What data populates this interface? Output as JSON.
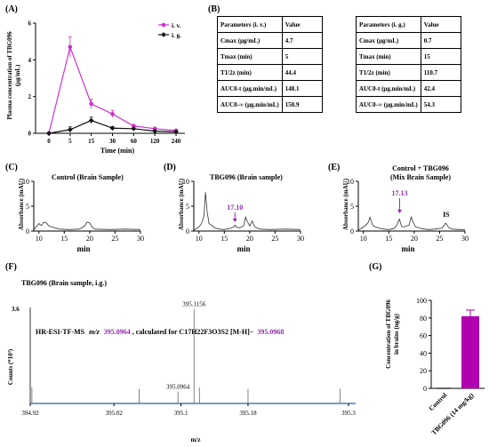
{
  "panels": {
    "A": {
      "letter": "(A)",
      "ylabel_line1": "Plasma concentration of TBG096",
      "ylabel_line2": "(μg/mL)",
      "xlabel": "Time (min)",
      "legend": [
        "i. v.",
        "i. g."
      ]
    },
    "B": {
      "letter": "(B)",
      "iv_table": {
        "header": [
          "Parameters (i. v.)",
          "Value"
        ],
        "rows": [
          [
            "Cmax (μg/mL)",
            "4.7"
          ],
          [
            "Tmax (min)",
            "5"
          ],
          [
            "T1/2z (min)",
            "44.4"
          ],
          [
            "AUC0-t (μg.min/mL)",
            "148.1"
          ],
          [
            "AUC0-∞ (μg.min/mL)",
            "150.9"
          ]
        ]
      },
      "ig_table": {
        "header": [
          "Parameters (i. g.)",
          "Value"
        ],
        "rows": [
          [
            "Cmax (μg/mL)",
            "0.7"
          ],
          [
            "Tmax (min)",
            "15"
          ],
          [
            "T1/2z (min)",
            "110.7"
          ],
          [
            "AUC0-t (μg.min/mL)",
            "42.4"
          ],
          [
            "AUC0-∞ (μg.min/mL)",
            "54.3"
          ]
        ]
      }
    },
    "C": {
      "letter": "(C)",
      "title": "Control (Brain Sample)",
      "ylabel": "Absorbance (mAU)",
      "xlabel": "min"
    },
    "D": {
      "letter": "(D)",
      "title": "TBG096 (Brain sample)",
      "peak_label": "17.10",
      "ylabel": "Absorbance (mAU)",
      "xlabel": "min"
    },
    "E": {
      "letter": "(E)",
      "title_line1": "Control + TBG096",
      "title_line2": "(Mix Brain Sample)",
      "peak_label": "17.13",
      "is_label": "IS",
      "ylabel": "Absorbance (mAU)",
      "xlabel": "min"
    },
    "F": {
      "letter": "(F)",
      "title": "TBG096 (Brain sample, i.g.)",
      "formula_prefix": "HR-ESI-TF-MS",
      "formula_mz": "m/z",
      "formula_obs": "395.0964",
      "formula_mid": ", calculated for C17H22F3O3S2 [M-H]−",
      "formula_calc": "395.0968",
      "ylabel": "Counts (*10³)",
      "xlabel": "m/z",
      "y_top_label": "3.6",
      "peak_top_label": "395.1156",
      "peak_obs_label": "395.0964"
    },
    "G": {
      "letter": "(G)",
      "ylabel_line1": "Concentration of TBG096",
      "ylabel_line2": "in brains (ng/g)"
    }
  },
  "chart_data": [
    {
      "panel": "A",
      "type": "line",
      "xlabel": "Time (min)",
      "ylabel": "Plasma concentration of TBG096 (μg/mL)",
      "categories": [
        "0",
        "5",
        "15",
        "30",
        "60",
        "120",
        "240"
      ],
      "ylim": [
        0,
        6
      ],
      "yticks": [
        0,
        2,
        4,
        6
      ],
      "legend_position": "top-right",
      "series": [
        {
          "name": "i. v.",
          "color": "#cc33cc",
          "marker": "circle",
          "values": [
            0,
            4.7,
            1.6,
            1.05,
            0.4,
            0.25,
            0.15
          ],
          "errors": [
            0,
            0.55,
            0.25,
            0.2,
            0.08,
            0.06,
            0.04
          ]
        },
        {
          "name": "i. g.",
          "color": "#111111",
          "marker": "diamond",
          "values": [
            0,
            0.2,
            0.7,
            0.28,
            0.25,
            0.12,
            0.08
          ],
          "errors": [
            0,
            0.15,
            0.18,
            0.08,
            0.06,
            0.04,
            0.03
          ]
        }
      ]
    },
    {
      "panel": "C",
      "type": "line",
      "title": "Control (Brain Sample)",
      "xlabel": "min",
      "ylabel": "Absorbance (mAU)",
      "xlim": [
        9,
        30
      ],
      "ylim": [
        0,
        10
      ],
      "xticks": [
        10,
        15,
        20,
        25,
        30
      ],
      "yticks": [
        0,
        5,
        10
      ],
      "x": [
        9,
        10,
        10.5,
        11,
        11.5,
        12,
        13,
        14,
        16,
        18,
        19,
        19.5,
        20,
        20.5,
        21,
        24,
        27,
        30
      ],
      "y": [
        0.2,
        1.5,
        1.1,
        1.8,
        1.6,
        1.0,
        0.7,
        0.4,
        0.3,
        0.4,
        1.0,
        1.8,
        1.6,
        0.8,
        0.4,
        0.3,
        0.4,
        0.3
      ]
    },
    {
      "panel": "D",
      "type": "line",
      "title": "TBG096 (Brain sample)",
      "xlabel": "min",
      "ylabel": "Absorbance (mAU)",
      "xlim": [
        9,
        30
      ],
      "ylim": [
        0,
        10
      ],
      "xticks": [
        10,
        15,
        20,
        25,
        30
      ],
      "yticks": [
        0,
        5,
        10
      ],
      "annotation": {
        "label": "17.10",
        "x": 17.1
      },
      "x": [
        9,
        10,
        10.5,
        11,
        11.3,
        11.6,
        12,
        12.5,
        13,
        14,
        15,
        16,
        17,
        17.1,
        17.3,
        18,
        18.8,
        19.2,
        19.5,
        20,
        20.5,
        21,
        22,
        24,
        27,
        30
      ],
      "y": [
        0.2,
        0.8,
        1.5,
        3.0,
        7.8,
        4.0,
        1.5,
        1.2,
        0.7,
        0.4,
        0.3,
        0.5,
        0.9,
        1.2,
        0.9,
        0.6,
        1.0,
        2.8,
        2.0,
        1.0,
        2.0,
        0.8,
        0.4,
        0.3,
        0.4,
        0.3
      ]
    },
    {
      "panel": "E",
      "type": "line",
      "title": "Control + TBG096 (Mix Brain Sample)",
      "xlabel": "min",
      "ylabel": "Absorbance (mAU)",
      "xlim": [
        9,
        30
      ],
      "ylim": [
        0,
        10
      ],
      "xticks": [
        10,
        15,
        20,
        25,
        30
      ],
      "yticks": [
        0,
        5,
        10
      ],
      "annotations": [
        {
          "label": "17.13",
          "x": 17.13
        },
        {
          "label": "IS",
          "x": 26.3
        }
      ],
      "x": [
        9,
        10,
        10.5,
        11,
        11.3,
        11.7,
        12,
        13,
        14,
        15,
        16,
        16.6,
        17.1,
        17.5,
        18,
        19,
        19.4,
        19.8,
        20.2,
        21,
        22,
        23,
        24,
        25.5,
        26.2,
        26.8,
        27.5,
        29,
        30
      ],
      "y": [
        0.2,
        0.8,
        1.2,
        1.8,
        2.8,
        1.5,
        1.0,
        0.6,
        0.4,
        0.3,
        0.5,
        1.2,
        2.4,
        1.0,
        0.8,
        1.2,
        2.8,
        1.8,
        0.9,
        0.6,
        0.4,
        0.3,
        0.4,
        0.6,
        1.6,
        0.7,
        0.4,
        0.3,
        0.3
      ]
    },
    {
      "panel": "F",
      "type": "bar",
      "title": "TBG096 (Brain sample, i.g.)",
      "xlabel": "m/z",
      "ylabel": "Counts (*10³)",
      "xlim": [
        394.92,
        395.3
      ],
      "ylim": [
        0,
        3.6
      ],
      "xticks": [
        394.92,
        395.02,
        395.1,
        395.18,
        395.3
      ],
      "x": [
        394.922,
        395.05,
        395.0964,
        395.1156,
        395.122,
        395.18,
        395.29
      ],
      "values": [
        0.6,
        0.55,
        0.45,
        3.55,
        0.6,
        0.55,
        0.55
      ]
    },
    {
      "panel": "G",
      "type": "bar",
      "ylabel": "Concentration of TBG096 in brains (ng/g)",
      "categories": [
        "Control",
        "TBG096 (14 mg/kg)"
      ],
      "values": [
        0,
        82
      ],
      "errors": [
        0,
        7
      ],
      "ylim": [
        0,
        100
      ],
      "yticks": [
        0,
        20,
        40,
        60,
        80,
        100
      ],
      "color": "#b000b0"
    }
  ]
}
